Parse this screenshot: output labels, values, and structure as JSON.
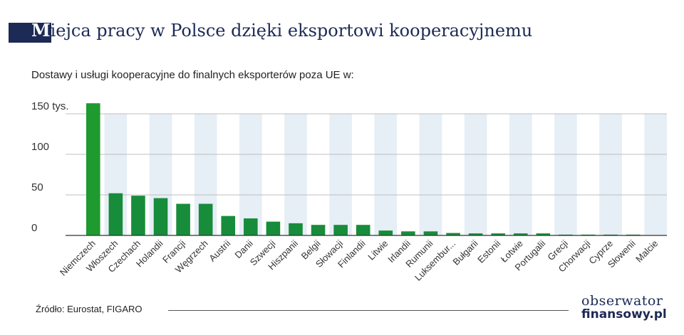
{
  "header": {
    "title_first": "M",
    "title_rest": "iejca pracy w Polsce dzięki eksportowi kooperacyjnemu",
    "subtitle": "Dostawy i usługi kooperacyjne do finalnych eksporterów poza UE w:"
  },
  "footer": {
    "source": "Źródło: Eurostat, FIGARO",
    "logo_line1": "obserwator",
    "logo_line2": "finansowy.pl"
  },
  "colors": {
    "bar_first": "#1e9a2f",
    "bar": "#178c3a",
    "stripe": "#e6eef6",
    "grid": "#bfbfbf",
    "axis": "#333333"
  },
  "chart_data": {
    "type": "bar",
    "categories": [
      "Niemczech",
      "Włoszech",
      "Czechach",
      "Holandii",
      "Francji",
      "Węgrzech",
      "Austrii",
      "Danii",
      "Szwecji",
      "Hiszpanii",
      "Belgii",
      "Słowacji",
      "Finlandii",
      "Litwie",
      "Irlandii",
      "Rumunii",
      "Luksembur...",
      "Bułgarii",
      "Estonii",
      "Łotwie",
      "Portugalii",
      "Grecji",
      "Chorwacji",
      "Cyprze",
      "Słowenii",
      "Malcie"
    ],
    "values": [
      163,
      52,
      49,
      46,
      39,
      39,
      24,
      21,
      17,
      15,
      13,
      13,
      13,
      6,
      5,
      5,
      3,
      2.5,
      2.5,
      2.5,
      2.5,
      1,
      1,
      1,
      1,
      0.3
    ],
    "yticks": [
      {
        "value": 0,
        "label": "0"
      },
      {
        "value": 50,
        "label": "50"
      },
      {
        "value": 100,
        "label": "100"
      },
      {
        "value": 150,
        "label": "150 tys."
      }
    ],
    "ylim": [
      0,
      165
    ],
    "grid": true,
    "legend": "none"
  }
}
